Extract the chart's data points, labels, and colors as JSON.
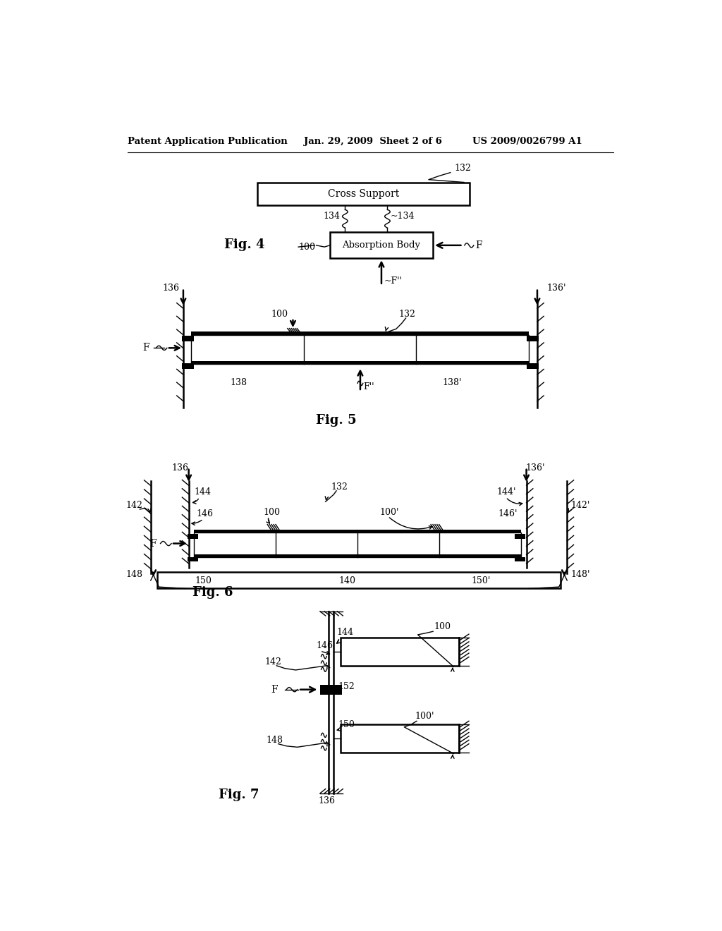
{
  "bg_color": "#ffffff",
  "header_left": "Patent Application Publication",
  "header_center": "Jan. 29, 2009  Sheet 2 of 6",
  "header_right": "US 2009/0026799 A1",
  "fig4_label": "Fig. 4",
  "fig5_label": "Fig. 5",
  "fig6_label": "Fig. 6",
  "fig7_label": "Fig. 7"
}
